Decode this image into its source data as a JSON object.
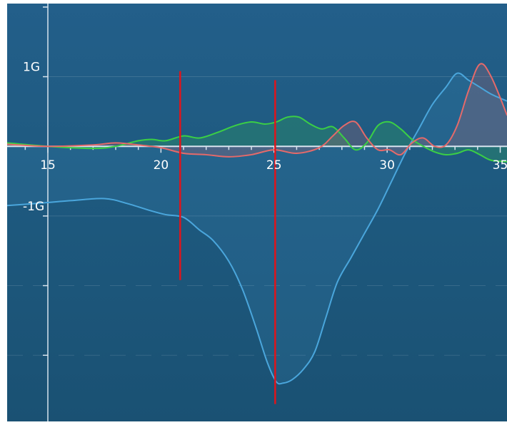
{
  "chart_data": {
    "type": "line",
    "xlim": [
      13.2,
      35.3
    ],
    "ylim": [
      -3.95,
      2.05
    ],
    "x_ticks": [
      15,
      20,
      25,
      30,
      35
    ],
    "x_tick_labels": [
      "15",
      "20",
      "25",
      "30",
      "35"
    ],
    "y_tick_labels": [
      {
        "value": 1,
        "label": "1G"
      },
      {
        "value": -1,
        "label": "-1G"
      }
    ],
    "grid": true,
    "colors": {
      "blue": "#4aa6dc",
      "green": "#3bcf45",
      "red": "#e56a6a",
      "marker": "#e0141b",
      "axis": "#d8e4ee"
    },
    "series": [
      {
        "color": "blue",
        "x": [
          13.2,
          14.5,
          16,
          17.5,
          18.5,
          19.5,
          20.2,
          21,
          21.7,
          22.3,
          23,
          23.6,
          24.2,
          24.7,
          25.1,
          25.4,
          25.8,
          26.3,
          26.8,
          27.3,
          27.8,
          28.4,
          29,
          29.6,
          30.2,
          30.8,
          31.4,
          32,
          32.6,
          33.1,
          33.6,
          34.1,
          34.6,
          35.3
        ],
        "y": [
          -0.85,
          -0.82,
          -0.78,
          -0.75,
          -0.82,
          -0.92,
          -0.98,
          -1.02,
          -1.2,
          -1.35,
          -1.65,
          -2.05,
          -2.6,
          -3.1,
          -3.38,
          -3.4,
          -3.35,
          -3.2,
          -2.95,
          -2.45,
          -1.95,
          -1.6,
          -1.25,
          -0.9,
          -0.5,
          -0.1,
          0.25,
          0.6,
          0.85,
          1.05,
          0.95,
          0.85,
          0.75,
          0.65
        ]
      },
      {
        "color": "green",
        "x": [
          13.2,
          15,
          17,
          18,
          19,
          19.6,
          20.2,
          21,
          21.7,
          22.5,
          23.3,
          24,
          24.6,
          25.1,
          25.6,
          26.1,
          26.6,
          27.1,
          27.6,
          28.1,
          28.6,
          29.1,
          29.6,
          30.1,
          30.6,
          31.1,
          31.6,
          32.1,
          32.6,
          33.1,
          33.6,
          34.1,
          34.6,
          35.3
        ],
        "y": [
          0.05,
          0.0,
          -0.03,
          0.0,
          0.08,
          0.1,
          0.08,
          0.15,
          0.12,
          0.2,
          0.3,
          0.35,
          0.32,
          0.35,
          0.42,
          0.42,
          0.32,
          0.25,
          0.28,
          0.12,
          -0.05,
          0.05,
          0.3,
          0.35,
          0.25,
          0.1,
          0.0,
          -0.08,
          -0.12,
          -0.1,
          -0.05,
          -0.12,
          -0.2,
          -0.22
        ]
      },
      {
        "color": "red",
        "x": [
          13.2,
          15,
          17,
          18,
          19,
          20,
          21,
          22,
          23,
          24,
          25,
          26,
          27,
          27.6,
          28.1,
          28.6,
          29.1,
          29.6,
          30.1,
          30.6,
          31.1,
          31.6,
          32.1,
          32.6,
          33.1,
          33.6,
          34.1,
          34.6,
          35.3
        ],
        "y": [
          0.03,
          0.0,
          0.02,
          0.05,
          0.02,
          -0.02,
          -0.1,
          -0.12,
          -0.15,
          -0.12,
          -0.05,
          -0.1,
          -0.02,
          0.15,
          0.3,
          0.35,
          0.12,
          -0.05,
          -0.05,
          -0.12,
          0.05,
          0.12,
          0.0,
          0.02,
          0.3,
          0.8,
          1.18,
          1.0,
          0.45
        ]
      }
    ],
    "markers": [
      {
        "x": 20.85,
        "y_top": 1.08,
        "y_bottom": -1.92
      },
      {
        "x": 25.05,
        "y_top": 0.95,
        "y_bottom": -3.7
      }
    ]
  }
}
